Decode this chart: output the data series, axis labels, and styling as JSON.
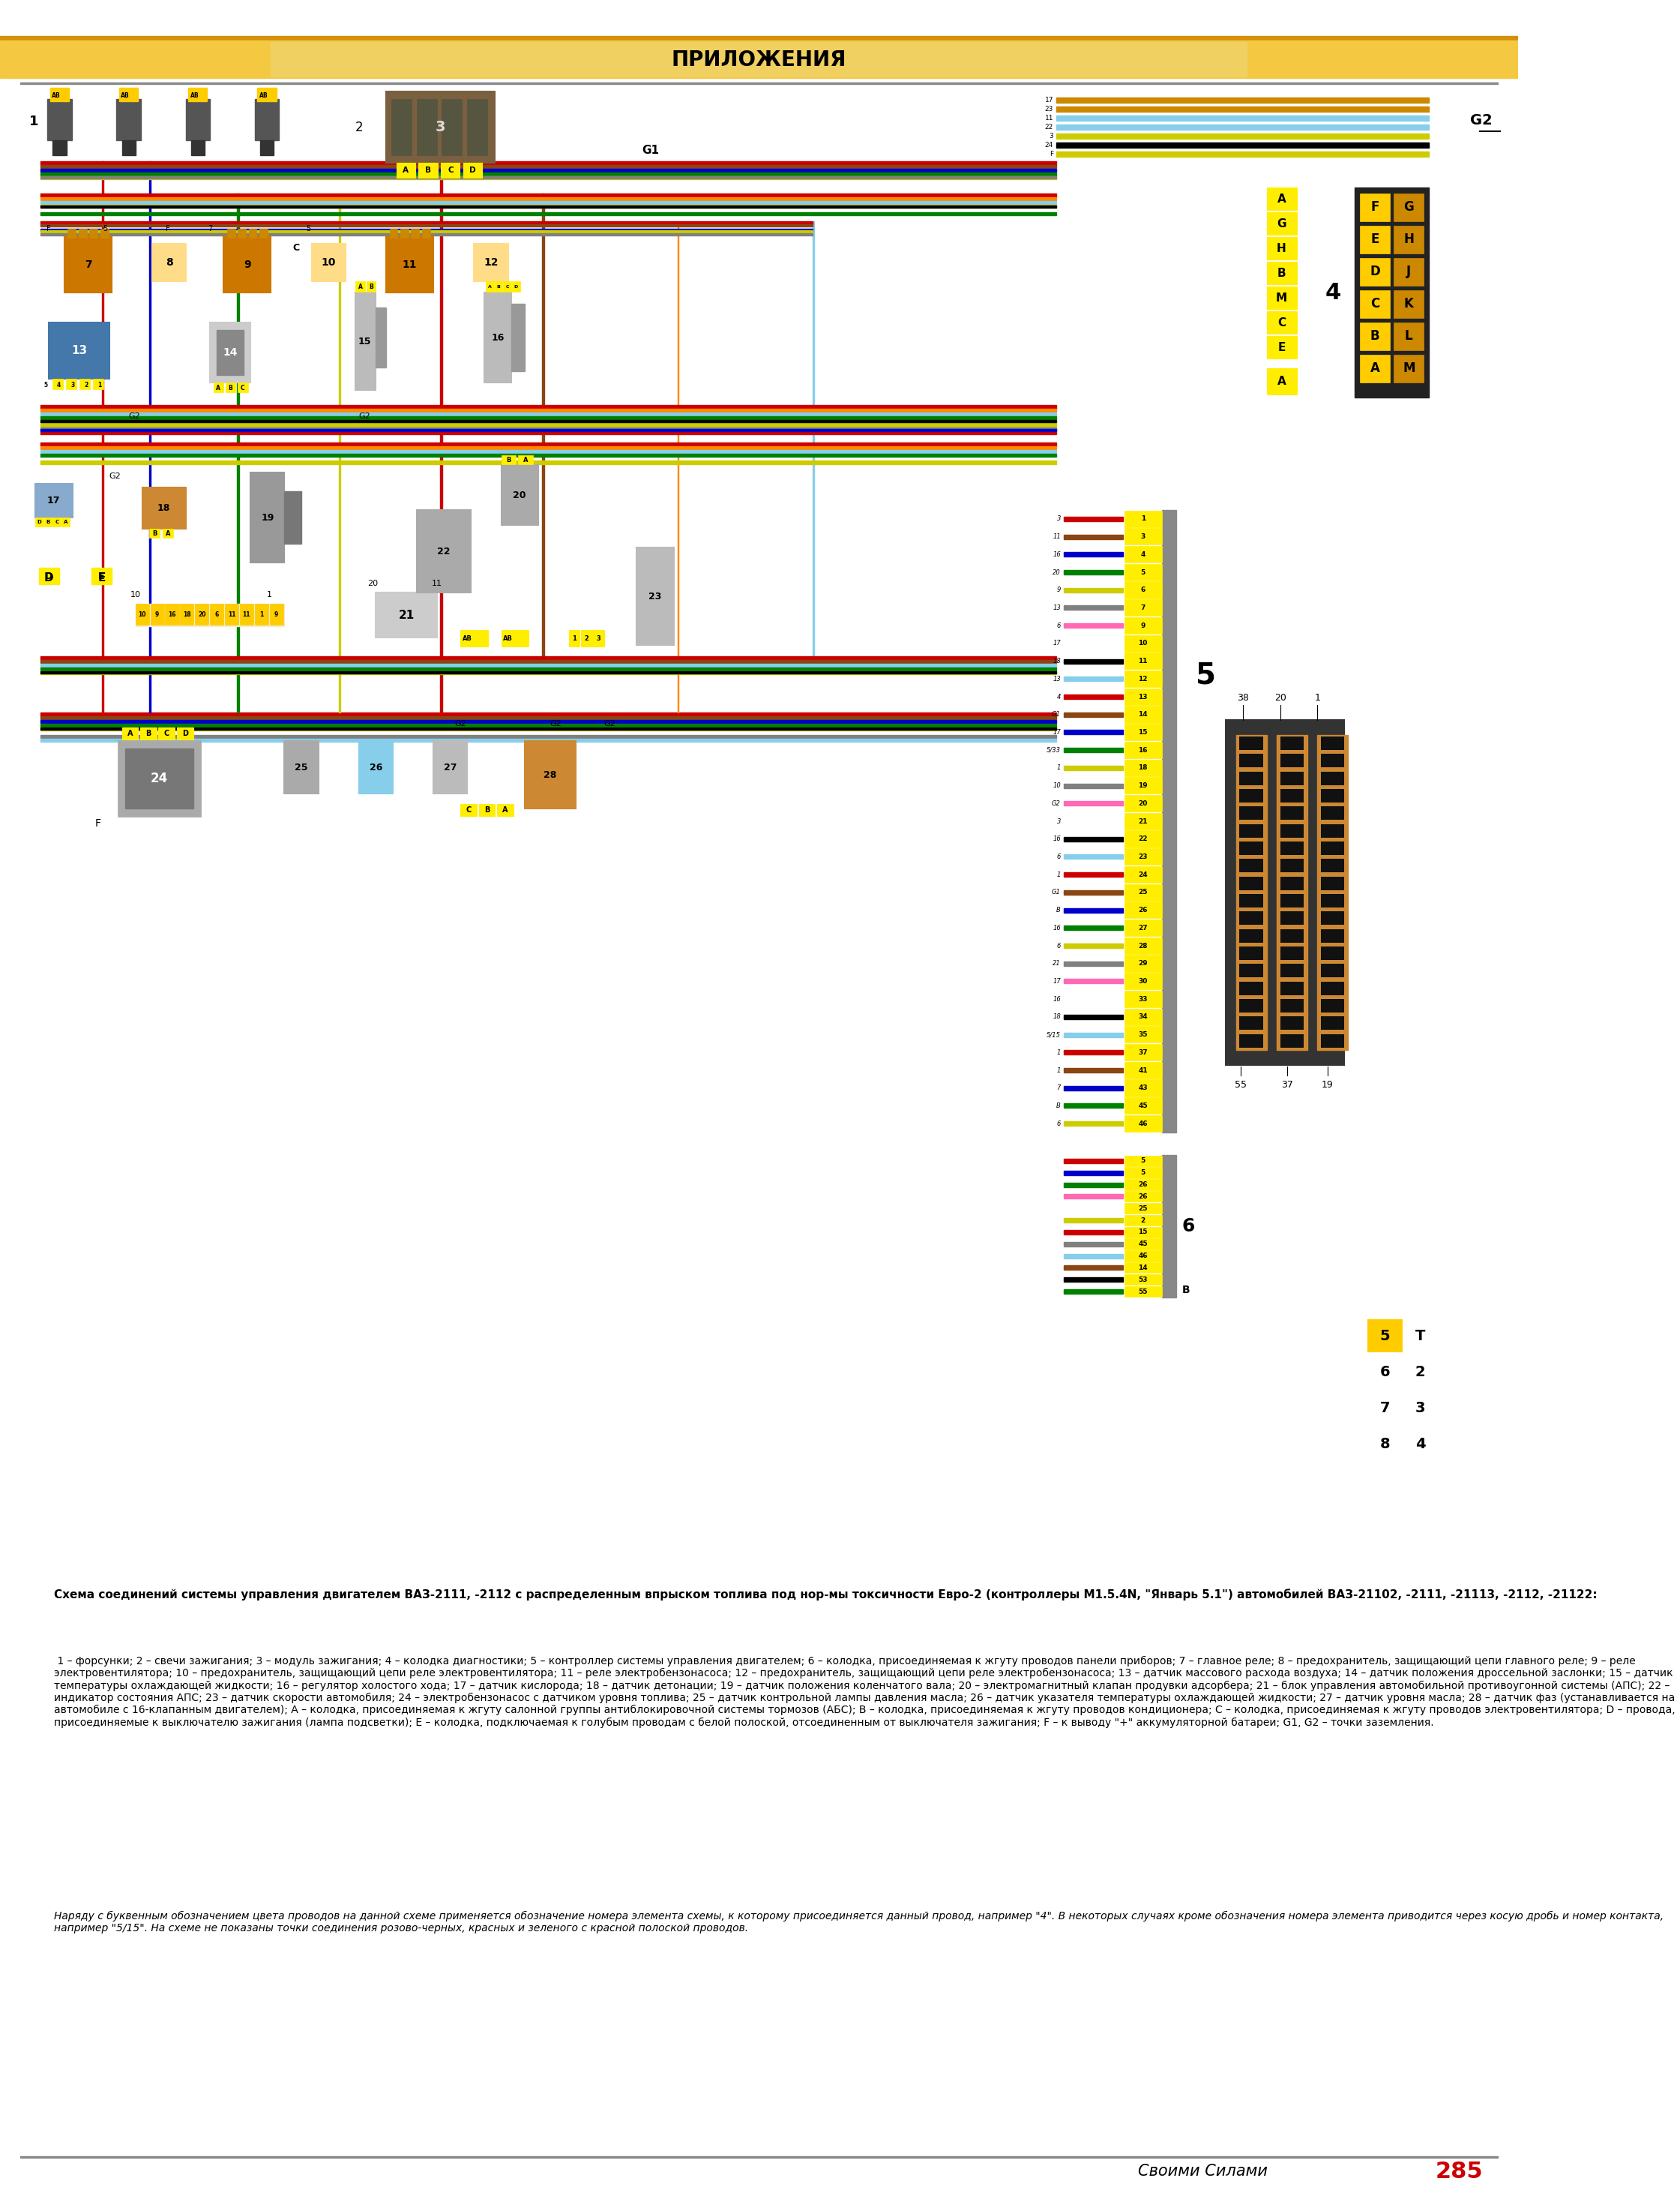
{
  "page_bg": "#ffffff",
  "header_bg_light": "#f5c842",
  "header_bg_dark": "#e8a800",
  "header_stripe_top": "#d4900a",
  "header_text": "ПРИЛОЖЕНИЯ",
  "header_text_color": "#000000",
  "footer_text": "Своими Силами",
  "footer_page_num": "285",
  "caption_bold": "Схема соединений системы управления двигателем ВАЗ-2111, -2112 с распределенным впрыском топлива под нор-мы токсичности Евро-2 (контроллеры М1.5.4N, \"Январь 5.1\") автомобилей ВАЗ-21102, -2111, -21113, -2112, -21122:",
  "caption_normal": " 1 – форсунки; 2 – свечи зажигания; 3 – модуль зажигания; 4 – колодка диагностики; 5 – контроллер системы управления двигателем; 6 – колодка, присоединяемая к жгуту проводов панели приборов; 7 – главное реле; 8 – предохранитель, защищающий цепи главного реле; 9 – реле электровентилятора; 10 – предохранитель, защищающий цепи реле электровентилятора; 11 – реле электробензонасоса; 12 – предохранитель, защищающий цепи реле электробензонасоса; 13 – датчик массового расхода воздуха; 14 – датчик положения дроссельной заслонки; 15 – датчик температуры охлаждающей жидкости; 16 – регулятор холостого хода; 17 – датчик кислорода; 18 – датчик детонации; 19 – датчик положения коленчатого вала; 20 – электромагнитный клапан продувки адсорбера; 21 – блок управления автомобильной противоугонной системы (АПС); 22 – индикатор состояния АПС; 23 – датчик скорости автомобиля; 24 – электробензонасос с датчиком уровня топлива; 25 – датчик контрольной лампы давления масла; 26 – датчик указателя температуры охлаждающей жидкости; 27 – датчик уровня масла; 28 – датчик фаз (устанавливается на автомобиле с 16-клапанным двигателем); А – колодка, присоединяемая к жгуту салонной группы антиблокировочной системы тормозов (АБС); В – колодка, присоединяемая к жгуту проводов кондиционера; С – колодка, присоединяемая к жгуту проводов электровентилятора; D – провода, присоединяемые к выключателю зажигания (лампа подсветки); Е – колодка, подключаемая к голубым проводам с белой полоской, отсоединенным от выключателя зажигания; F – к выводу \"+\" аккумуляторной батареи; G1, G2 – точки заземления.",
  "note_italic": "Наряду с буквенным обозначением цвета проводов на данной схеме применяется обозначение номера элемента схемы, к которому присоединяется данный провод, например \"4\". В некоторых случаях кроме обозначения номера элемента приводится через косую дробь и номер контакта, например \"5/15\". На схеме не показаны точки соединения розово-черных, красных и зеленого с красной полоской проводов.",
  "wire_colors": [
    "#cc0000",
    "#8b4513",
    "#0000cc",
    "#008000",
    "#cccc00",
    "#808080",
    "#ff69b4",
    "#ffffff",
    "#000000",
    "#87ceeb",
    "#cc0000",
    "#8b4513",
    "#0000cc",
    "#008000",
    "#cccc00",
    "#808080",
    "#ff69b4",
    "#ffffff",
    "#000000",
    "#87ceeb",
    "#cc0000",
    "#8b4513",
    "#0000cc",
    "#008000",
    "#cccc00",
    "#808080",
    "#ff69b4",
    "#ffffff",
    "#000000",
    "#87ceeb",
    "#cc0000",
    "#8b4513",
    "#0000cc",
    "#008000",
    "#cccc00",
    "#808080",
    "#ff69b4",
    "#ffffff",
    "#000000",
    "#87ceeb",
    "#cc0000",
    "#8b4513",
    "#0000cc",
    "#008000",
    "#cccc00",
    "#808080",
    "#ff69b4",
    "#ffffff",
    "#000000",
    "#87ceeb",
    "#cc0000",
    "#8b4513",
    "#0000cc",
    "#008000",
    "#cccc00"
  ],
  "pin_numbers_left": [
    "3",
    "11",
    "16",
    "20",
    "9",
    "13",
    "6",
    "17",
    "18",
    "13",
    "4",
    "G1",
    "17",
    "5/33",
    "1",
    "10",
    "G2",
    "3",
    "16",
    "6",
    "1",
    "G1",
    "B",
    "16",
    "6",
    "21",
    "17",
    "16",
    "18",
    "5/15",
    "1",
    "1",
    "7",
    "B",
    "6"
  ],
  "pin_numbers_right": [
    "1",
    "3",
    "4",
    "5",
    "6",
    "7",
    "9",
    "10",
    "11",
    "12",
    "13",
    "14",
    "15",
    "16",
    "18",
    "19",
    "20",
    "21",
    "22",
    "23",
    "24",
    "25",
    "26",
    "27",
    "28",
    "29",
    "30",
    "33",
    "34",
    "35",
    "37",
    "41",
    "43",
    "45",
    "46"
  ],
  "right_box_labels_top": [
    "F",
    "G",
    "E",
    "H",
    "D",
    "J",
    "C",
    "K",
    "B",
    "L",
    "A",
    "M"
  ],
  "diag_connector_labels": [
    "A",
    "G",
    "H",
    "B",
    "M",
    "C",
    "E"
  ],
  "bottom_right_boxes": [
    [
      "5",
      "T"
    ],
    [
      "6",
      "2"
    ],
    [
      "7",
      "3"
    ],
    [
      "8",
      "4"
    ]
  ]
}
